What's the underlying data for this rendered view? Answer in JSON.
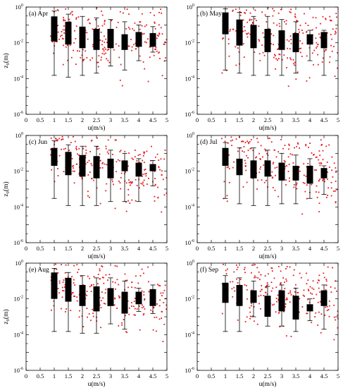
{
  "colors": {
    "scatter": "#e8191d",
    "box": "#000000",
    "background": "#ffffff"
  },
  "chart_data": [
    {
      "type": "box",
      "label": "(a) Apr",
      "xlabel": "u(m/s)",
      "ylabel": "z₀(m)",
      "xlim": [
        0,
        5
      ],
      "ylim": [
        1e-06,
        1
      ],
      "yscale": "log",
      "xticks": [
        "0",
        "0.5",
        "1",
        "1.5",
        "2",
        "2.5",
        "3",
        "3.5",
        "4",
        "4.5",
        "5"
      ],
      "yticks": [
        {
          "base": "10",
          "exp": "0"
        },
        {
          "base": "10",
          "exp": "-2"
        },
        {
          "base": "10",
          "exp": "-4"
        },
        {
          "base": "10",
          "exp": "-6"
        }
      ],
      "boxes": [
        {
          "x": 1.0,
          "min": 0.00015,
          "q1": 0.012,
          "q3": 0.3,
          "max": 0.6
        },
        {
          "x": 1.5,
          "min": 0.00012,
          "q1": 0.008,
          "q3": 0.15,
          "max": 0.4
        },
        {
          "x": 2.0,
          "min": 0.00015,
          "q1": 0.005,
          "q3": 0.08,
          "max": 0.3
        },
        {
          "x": 2.5,
          "min": 0.0002,
          "q1": 0.004,
          "q3": 0.06,
          "max": 0.25
        },
        {
          "x": 3.0,
          "min": 0.0005,
          "q1": 0.005,
          "q3": 0.06,
          "max": 0.2
        },
        {
          "x": 3.5,
          "min": 0.0003,
          "q1": 0.004,
          "q3": 0.03,
          "max": 0.15
        },
        {
          "x": 4.0,
          "min": 0.001,
          "q1": 0.006,
          "q3": 0.04,
          "max": 0.1
        },
        {
          "x": 4.5,
          "min": 0.003,
          "q1": 0.006,
          "q3": 0.035,
          "max": 0.08
        }
      ]
    },
    {
      "type": "box",
      "label": "(b) May",
      "xlabel": "u(m/s)",
      "ylabel": "",
      "xlim": [
        0,
        5
      ],
      "ylim": [
        1e-06,
        1
      ],
      "yscale": "log",
      "xticks": [
        "0",
        "0.5",
        "1",
        "1.5",
        "2",
        "2.5",
        "3",
        "3.5",
        "4",
        "4.5",
        "5"
      ],
      "yticks": [
        {
          "base": "10",
          "exp": "0"
        },
        {
          "base": "10",
          "exp": "-2"
        },
        {
          "base": "10",
          "exp": "-4"
        },
        {
          "base": "10",
          "exp": "-6"
        }
      ],
      "boxes": [
        {
          "x": 1.0,
          "min": 0.0003,
          "q1": 0.03,
          "q3": 0.5,
          "max": 0.8
        },
        {
          "x": 1.5,
          "min": 0.0002,
          "q1": 0.007,
          "q3": 0.2,
          "max": 0.5
        },
        {
          "x": 2.0,
          "min": 0.00015,
          "q1": 0.005,
          "q3": 0.1,
          "max": 0.3
        },
        {
          "x": 2.5,
          "min": 0.00015,
          "q1": 0.003,
          "q3": 0.06,
          "max": 0.3
        },
        {
          "x": 3.0,
          "min": 0.00015,
          "q1": 0.004,
          "q3": 0.05,
          "max": 0.2
        },
        {
          "x": 3.5,
          "min": 0.0002,
          "q1": 0.003,
          "q3": 0.035,
          "max": 0.15
        },
        {
          "x": 4.0,
          "min": 0.001,
          "q1": 0.008,
          "q3": 0.03,
          "max": 0.05
        },
        {
          "x": 4.5,
          "min": 0.00015,
          "q1": 0.005,
          "q3": 0.04,
          "max": 0.05
        }
      ]
    },
    {
      "type": "box",
      "label": "(c) Jun",
      "xlabel": "u(m/s)",
      "ylabel": "z₀(m)",
      "xlim": [
        0,
        5
      ],
      "ylim": [
        1e-06,
        1
      ],
      "yscale": "log",
      "xticks": [
        "0",
        "0.5",
        "1",
        "1.5",
        "2",
        "2.5",
        "3",
        "3.5",
        "4",
        "4.5",
        "5"
      ],
      "yticks": [
        {
          "base": "10",
          "exp": "0"
        },
        {
          "base": "10",
          "exp": "-2"
        },
        {
          "base": "10",
          "exp": "-4"
        },
        {
          "base": "10",
          "exp": "-6"
        }
      ],
      "boxes": [
        {
          "x": 1.0,
          "min": 0.0003,
          "q1": 0.02,
          "q3": 0.2,
          "max": 0.5
        },
        {
          "x": 1.5,
          "min": 0.00012,
          "q1": 0.006,
          "q3": 0.12,
          "max": 0.3
        },
        {
          "x": 2.0,
          "min": 0.00012,
          "q1": 0.005,
          "q3": 0.08,
          "max": 0.25
        },
        {
          "x": 2.5,
          "min": 0.00012,
          "q1": 0.004,
          "q3": 0.07,
          "max": 0.25
        },
        {
          "x": 3.0,
          "min": 0.0002,
          "q1": 0.004,
          "q3": 0.05,
          "max": 0.15
        },
        {
          "x": 3.5,
          "min": 0.0002,
          "q1": 0.01,
          "q3": 0.04,
          "max": 0.1
        },
        {
          "x": 4.0,
          "min": 0.0002,
          "q1": 0.005,
          "q3": 0.03,
          "max": 0.05
        },
        {
          "x": 4.5,
          "min": 0.0015,
          "q1": 0.01,
          "q3": 0.025,
          "max": 0.04
        }
      ]
    },
    {
      "type": "box",
      "label": "(d) Jul",
      "xlabel": "u(m/s)",
      "ylabel": "",
      "xlim": [
        0,
        5
      ],
      "ylim": [
        1e-06,
        1
      ],
      "yscale": "log",
      "xticks": [
        "0",
        "0.5",
        "1",
        "1.5",
        "2",
        "2.5",
        "3",
        "3.5",
        "4",
        "4.5",
        "5"
      ],
      "yticks": [
        {
          "base": "10",
          "exp": "0"
        },
        {
          "base": "10",
          "exp": "-2"
        },
        {
          "base": "10",
          "exp": "-4"
        },
        {
          "base": "10",
          "exp": "-6"
        }
      ],
      "boxes": [
        {
          "x": 1.0,
          "min": 0.0003,
          "q1": 0.02,
          "q3": 0.2,
          "max": 0.4
        },
        {
          "x": 1.5,
          "min": 0.00015,
          "q1": 0.006,
          "q3": 0.05,
          "max": 0.2
        },
        {
          "x": 2.0,
          "min": 0.00012,
          "q1": 0.004,
          "q3": 0.04,
          "max": 0.2
        },
        {
          "x": 2.5,
          "min": 0.00012,
          "q1": 0.005,
          "q3": 0.04,
          "max": 0.15
        },
        {
          "x": 3.0,
          "min": 0.00015,
          "q1": 0.003,
          "q3": 0.03,
          "max": 0.1
        },
        {
          "x": 3.5,
          "min": 0.00015,
          "q1": 0.003,
          "q3": 0.02,
          "max": 0.08
        },
        {
          "x": 4.0,
          "min": 0.0003,
          "q1": 0.002,
          "q3": 0.02,
          "max": 0.05
        },
        {
          "x": 4.5,
          "min": 0.0005,
          "q1": 0.004,
          "q3": 0.015,
          "max": 0.02
        }
      ]
    },
    {
      "type": "box",
      "label": "(e) Aug",
      "xlabel": "u(m/s)",
      "ylabel": "z₀(m)",
      "xlim": [
        0,
        5
      ],
      "ylim": [
        1e-06,
        1
      ],
      "yscale": "log",
      "xticks": [
        "0",
        "0.5",
        "1",
        "1.5",
        "2",
        "2.5",
        "3",
        "3.5",
        "4",
        "4.5",
        "5"
      ],
      "yticks": [
        {
          "base": "10",
          "exp": "0"
        },
        {
          "base": "10",
          "exp": "-2"
        },
        {
          "base": "10",
          "exp": "-4"
        },
        {
          "base": "10",
          "exp": "-6"
        }
      ],
      "boxes": [
        {
          "x": 1.0,
          "min": 0.00015,
          "q1": 0.01,
          "q3": 0.3,
          "max": 0.5
        },
        {
          "x": 1.5,
          "min": 0.00015,
          "q1": 0.007,
          "q3": 0.15,
          "max": 0.3
        },
        {
          "x": 2.0,
          "min": 0.00012,
          "q1": 0.004,
          "q3": 0.06,
          "max": 0.2
        },
        {
          "x": 2.5,
          "min": 0.00012,
          "q1": 0.002,
          "q3": 0.05,
          "max": 0.15
        },
        {
          "x": 3.0,
          "min": 0.0004,
          "q1": 0.004,
          "q3": 0.04,
          "max": 0.15
        },
        {
          "x": 3.5,
          "min": 0.0002,
          "q1": 0.0015,
          "q3": 0.025,
          "max": 0.1
        },
        {
          "x": 4.0,
          "min": 0.002,
          "q1": 0.005,
          "q3": 0.025,
          "max": 0.04
        },
        {
          "x": 4.5,
          "min": 0.0015,
          "q1": 0.004,
          "q3": 0.035,
          "max": 0.06
        }
      ]
    },
    {
      "type": "box",
      "label": "(f) Sep",
      "xlabel": "u(m/s)",
      "ylabel": "",
      "xlim": [
        0,
        5
      ],
      "ylim": [
        1e-06,
        1
      ],
      "yscale": "log",
      "xticks": [
        "0",
        "0.5",
        "1",
        "1.5",
        "2",
        "2.5",
        "3",
        "3.5",
        "4",
        "4.5",
        "5"
      ],
      "yticks": [
        {
          "base": "10",
          "exp": "0"
        },
        {
          "base": "10",
          "exp": "-2"
        },
        {
          "base": "10",
          "exp": "-4"
        },
        {
          "base": "10",
          "exp": "-6"
        }
      ],
      "boxes": [
        {
          "x": 1.0,
          "min": 0.00015,
          "q1": 0.006,
          "q3": 0.08,
          "max": 0.2
        },
        {
          "x": 1.5,
          "min": 0.00015,
          "q1": 0.004,
          "q3": 0.06,
          "max": 0.15
        },
        {
          "x": 2.0,
          "min": 0.001,
          "q1": 0.006,
          "q3": 0.03,
          "max": 0.1
        },
        {
          "x": 2.5,
          "min": 0.0003,
          "q1": 0.001,
          "q3": 0.015,
          "max": 0.05
        },
        {
          "x": 3.0,
          "min": 0.0003,
          "q1": 0.002,
          "q3": 0.03,
          "max": 0.06
        },
        {
          "x": 3.5,
          "min": 0.00015,
          "q1": 0.0007,
          "q3": 0.015,
          "max": 0.04
        },
        {
          "x": 4.0,
          "min": 0.0006,
          "q1": 0.002,
          "q3": 0.005,
          "max": 0.01
        },
        {
          "x": 4.5,
          "min": 0.0002,
          "q1": 0.004,
          "q3": 0.03,
          "max": 0.06
        }
      ]
    }
  ]
}
